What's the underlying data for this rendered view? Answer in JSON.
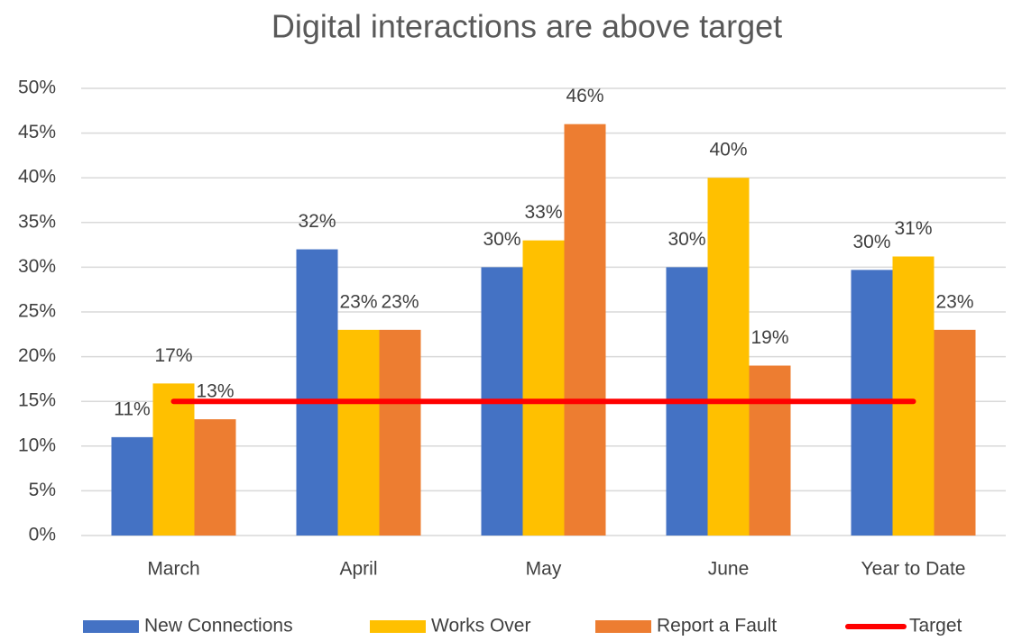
{
  "chart_data": {
    "type": "bar",
    "title": "Digital interactions are above target",
    "categories": [
      "March",
      "April",
      "May",
      "June",
      "Year to Date"
    ],
    "series": [
      {
        "name": "New Connections",
        "color": "#4472c4",
        "values": [
          11,
          32,
          30,
          30,
          29.7
        ],
        "value_labels": [
          "11%",
          "32%",
          "30%",
          "30%",
          "30%"
        ]
      },
      {
        "name": "Works Over",
        "color": "#ffc000",
        "values": [
          17,
          23,
          33,
          40,
          31.2
        ],
        "value_labels": [
          "17%",
          "23%",
          "33%",
          "40%",
          "31%"
        ]
      },
      {
        "name": "Report a Fault",
        "color": "#ed7d31",
        "values": [
          13,
          23,
          46,
          19,
          23
        ],
        "value_labels": [
          "13%",
          "23%",
          "46%",
          "19%",
          "23%"
        ]
      },
      {
        "name": "Target",
        "color": "#ff0000",
        "type": "line",
        "values": [
          15,
          15,
          15,
          15,
          15
        ]
      }
    ],
    "ylim": [
      0,
      50
    ],
    "yticks": [
      {
        "value": 0,
        "label": "0%"
      },
      {
        "value": 5,
        "label": "5%"
      },
      {
        "value": 10,
        "label": "10%"
      },
      {
        "value": 15,
        "label": "15%"
      },
      {
        "value": 20,
        "label": "20%"
      },
      {
        "value": 25,
        "label": "25%"
      },
      {
        "value": 30,
        "label": "30%"
      },
      {
        "value": 35,
        "label": "35%"
      },
      {
        "value": 40,
        "label": "40%"
      },
      {
        "value": 45,
        "label": "45%"
      },
      {
        "value": 50,
        "label": "50%"
      }
    ],
    "grid": true,
    "legend": "bottom"
  }
}
